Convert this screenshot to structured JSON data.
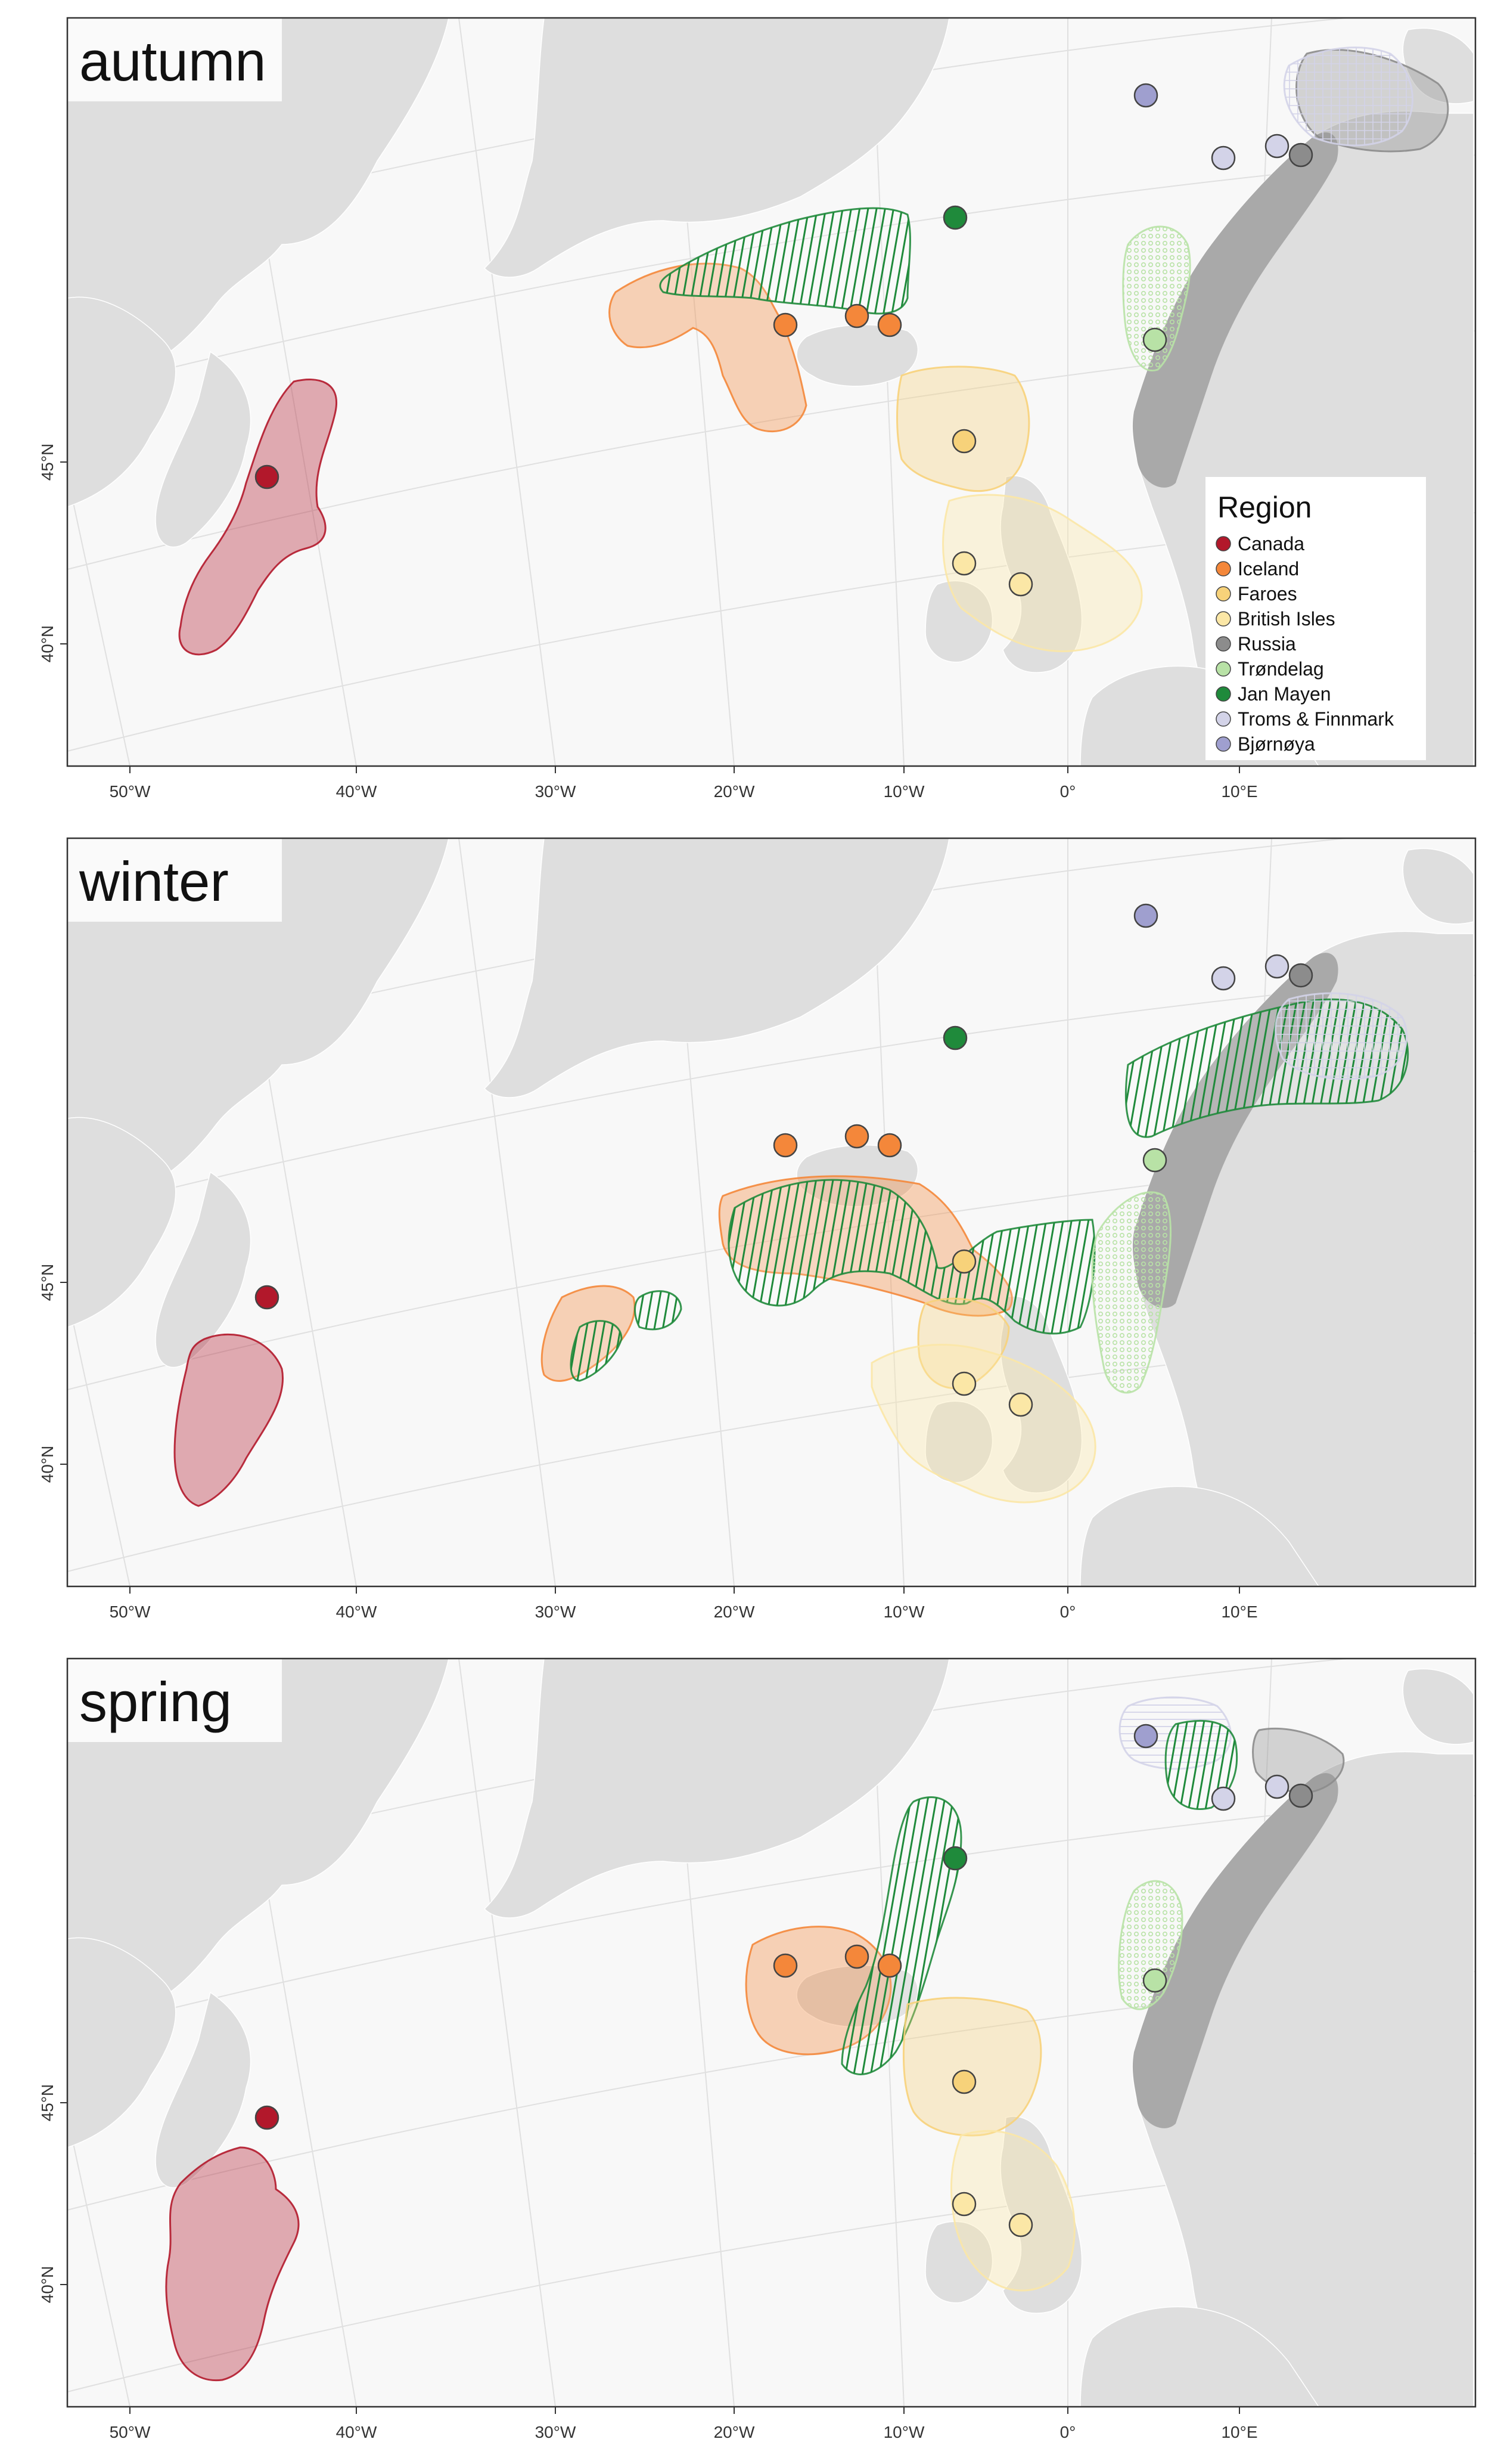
{
  "figure": {
    "panels": [
      {
        "season": "autumn"
      },
      {
        "season": "winter"
      },
      {
        "season": "spring"
      }
    ]
  },
  "axes": {
    "lon_labels": [
      "50°W",
      "40°W",
      "30°W",
      "20°W",
      "10°W",
      "0°",
      "10°E"
    ],
    "lat_labels": [
      "45°N",
      "40°N"
    ]
  },
  "legend": {
    "title": "Region",
    "items": [
      {
        "label": "Canada",
        "color": "#b2182b"
      },
      {
        "label": "Iceland",
        "color": "#f4873a"
      },
      {
        "label": "Faroes",
        "color": "#f7d27a"
      },
      {
        "label": "British Isles",
        "color": "#fbe7a6"
      },
      {
        "label": "Russia",
        "color": "#8c8c8c"
      },
      {
        "label": "Trøndelag",
        "color": "#b8e2a6"
      },
      {
        "label": "Jan Mayen",
        "color": "#1f8a3b"
      },
      {
        "label": "Troms & Finnmark",
        "color": "#d3d3e8"
      },
      {
        "label": "Bjørnøya",
        "color": "#9f9fcf"
      }
    ]
  },
  "colors": {
    "ocean": "#f8f8f8",
    "land": "#dedede",
    "norway_land": "#a9a9a9",
    "graticule": "#e0e0e0",
    "frame": "#333333"
  }
}
